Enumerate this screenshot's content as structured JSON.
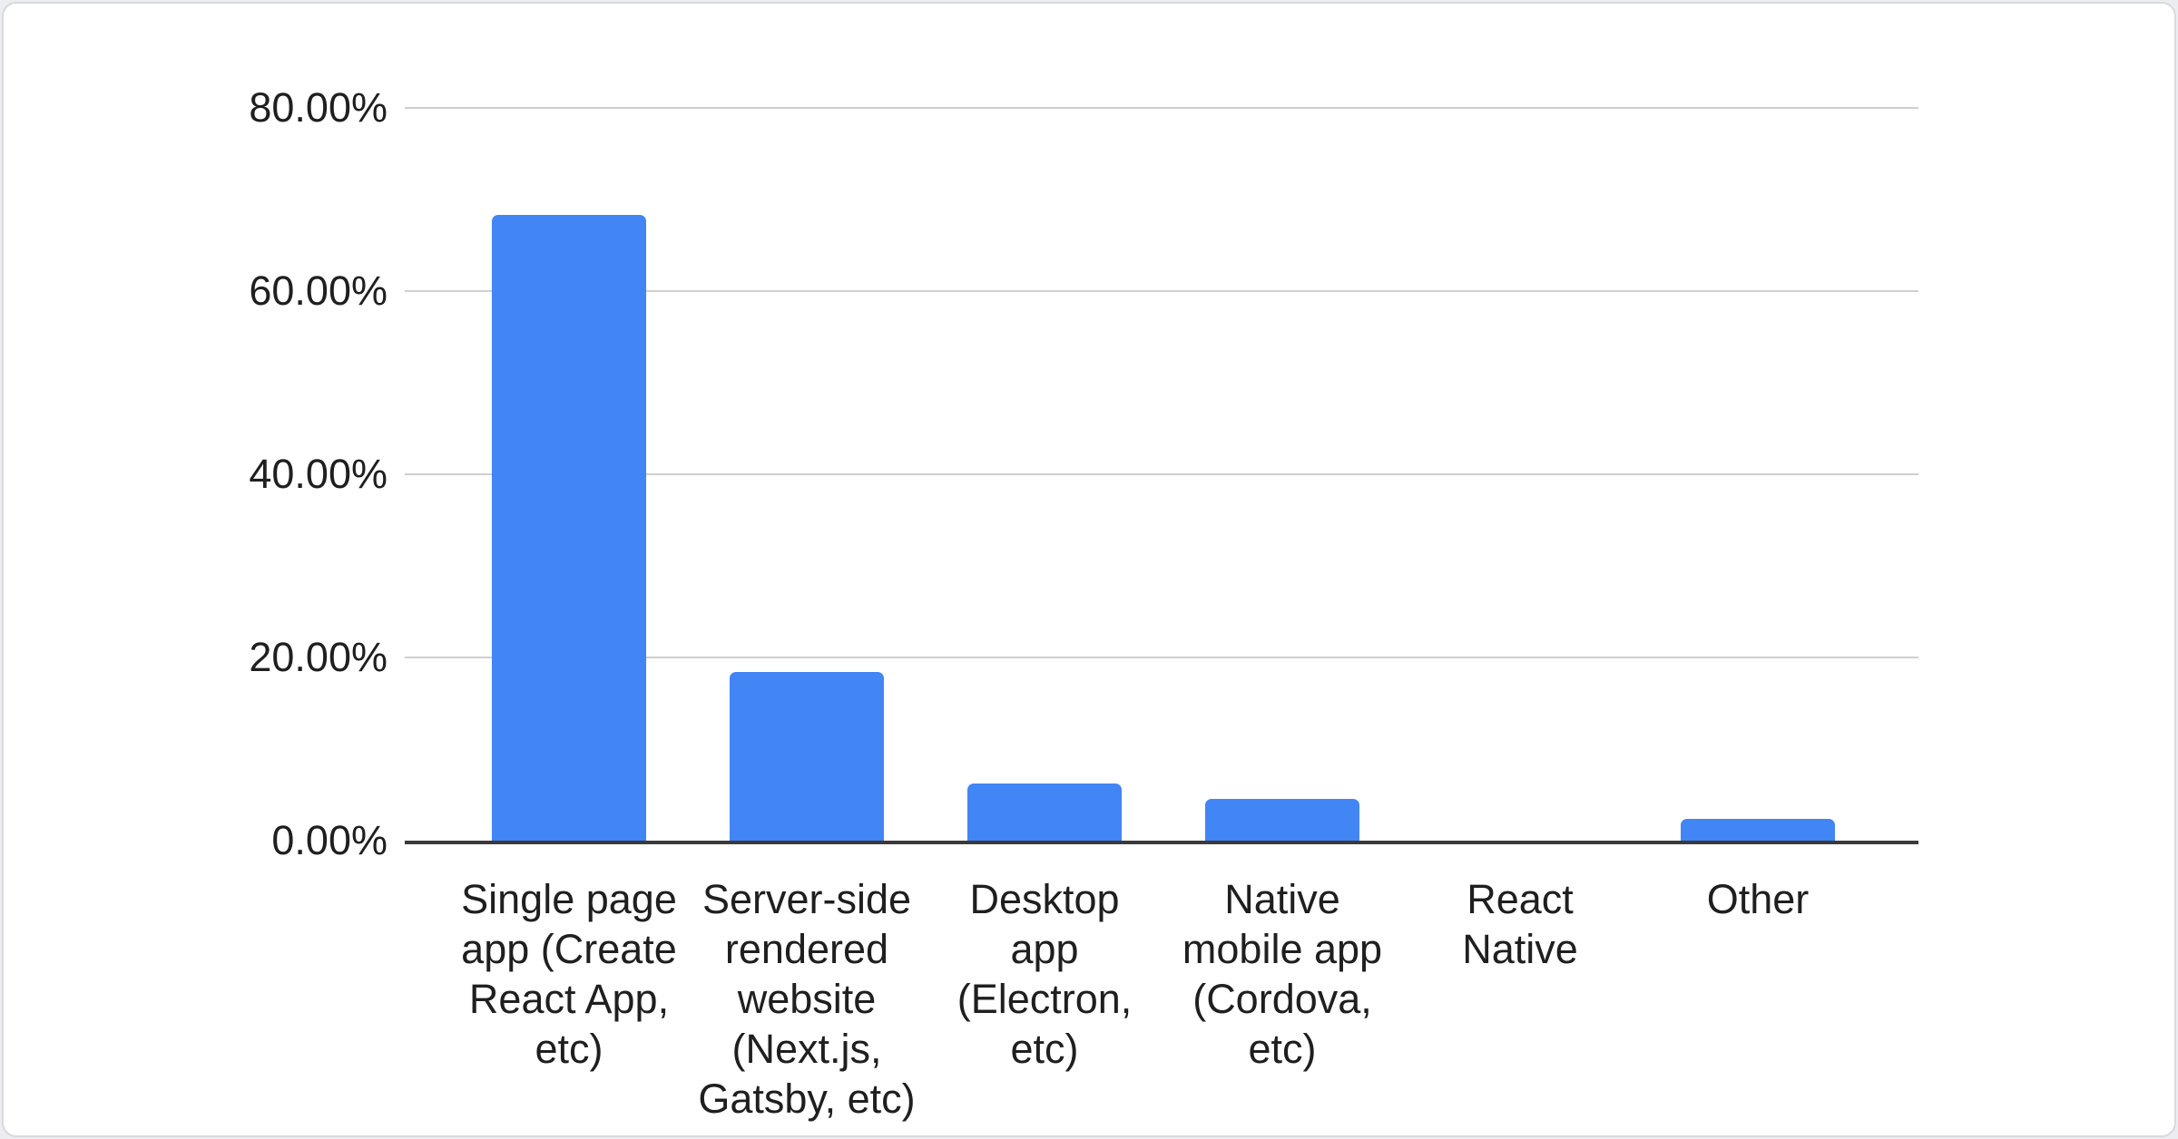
{
  "chart_data": {
    "type": "bar",
    "title": "",
    "xlabel": "",
    "ylabel": "",
    "categories": [
      "Single page\napp (Create\nReact App,\netc)",
      "Server-side\nrendered\nwebsite\n(Next.js,\nGatsby, etc)",
      "Desktop\napp\n(Electron,\netc)",
      "Native\nmobile app\n(Cordova,\netc)",
      "React\nNative",
      "Other"
    ],
    "values": [
      68.3,
      18.4,
      6.2,
      4.6,
      0,
      2.4
    ],
    "unit": "%",
    "ylim": [
      0,
      80
    ],
    "yticks": [
      "80.00%",
      "60.00%",
      "40.00%",
      "20.00%",
      "0.00%"
    ],
    "grid": true,
    "legend": false
  },
  "colors": {
    "bar": "#4285f4",
    "gridline": "#cfcfcf",
    "axis_line": "#3a3a3a",
    "text": "#1f1f1f",
    "card_background": "#ffffff",
    "card_border": "#d7dade",
    "page_background": "#ebedf0"
  }
}
